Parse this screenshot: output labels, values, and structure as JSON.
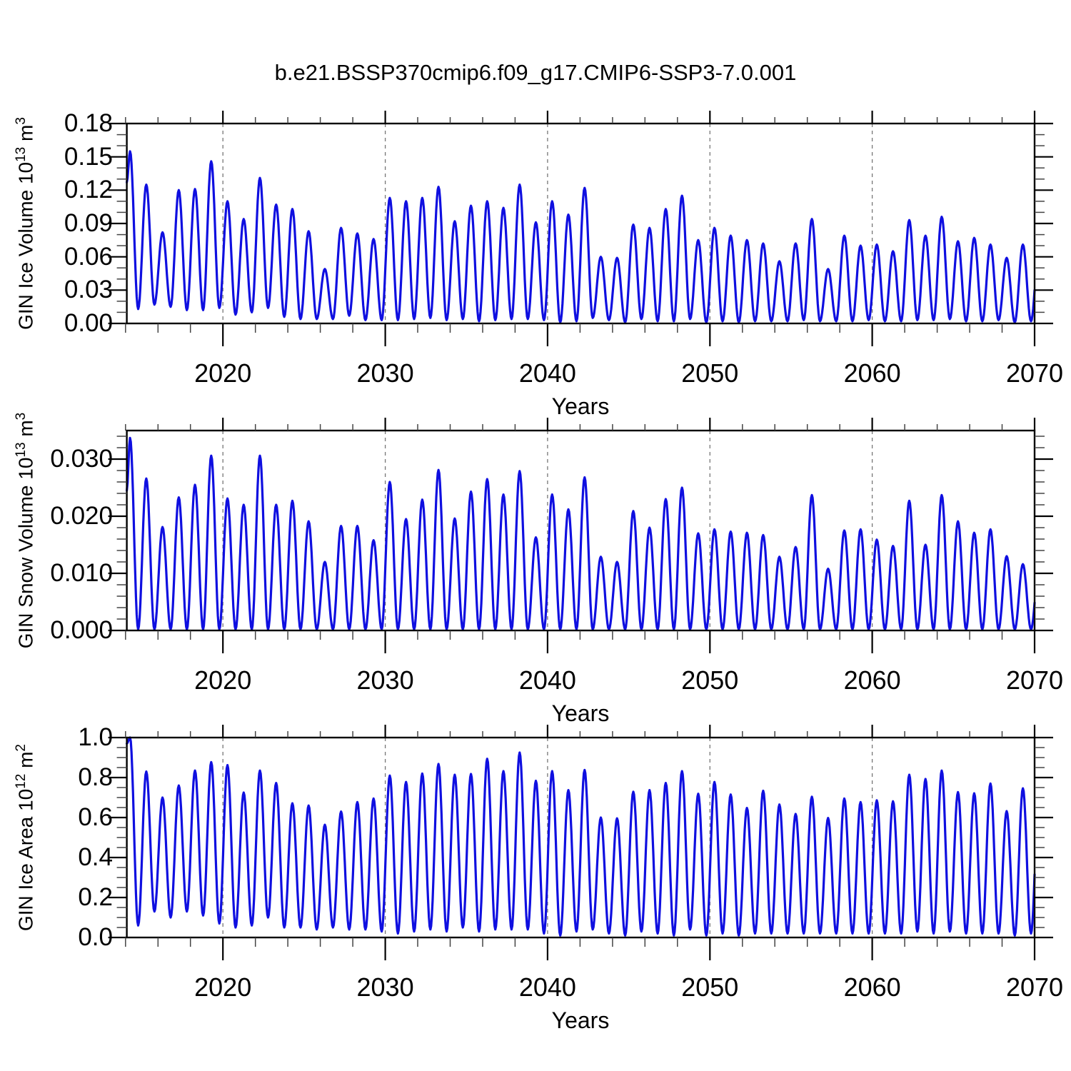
{
  "title": "b.e21.BSSP370cmip6.f09_g17.CMIP6-SSP3-7.0.001",
  "colors": {
    "line": "#0f0fe0",
    "frame": "#000000",
    "major_tick": "#000000",
    "minor_tick": "#444444",
    "dashed_gridline": "#777777",
    "text": "#000000",
    "background": "#ffffff"
  },
  "x_axis": {
    "label": "Years",
    "tick_labels": [
      "2020",
      "2030",
      "2040",
      "2050",
      "2060",
      "2070"
    ],
    "tick_years": [
      2020,
      2030,
      2040,
      2050,
      2060,
      2070
    ],
    "minor_step_years": 2,
    "dashed_years": [
      2020,
      2030,
      2040,
      2050,
      2060
    ]
  },
  "panels": [
    {
      "id": "ice-volume",
      "y_label": {
        "pre": "GIN Ice Volume 10",
        "sup1": "13",
        "mid": " m",
        "sup2": "3"
      },
      "y_tick_labels": [
        "0.00",
        "0.03",
        "0.06",
        "0.09",
        "0.12",
        "0.15",
        "0.18"
      ],
      "y_tick_values": [
        0.0,
        0.03,
        0.06,
        0.09,
        0.12,
        0.15,
        0.18
      ],
      "y_minor_step": 0.01
    },
    {
      "id": "snow-volume",
      "y_label": {
        "pre": "GIN Snow Volume 10",
        "sup1": "13",
        "mid": " m",
        "sup2": "3"
      },
      "y_tick_labels": [
        "0.000",
        "0.010",
        "0.020",
        "0.030"
      ],
      "y_tick_values": [
        0.0,
        0.01,
        0.02,
        0.03
      ],
      "y_minor_step": 0.002
    },
    {
      "id": "ice-area",
      "y_label": {
        "pre": "GIN Ice Area 10",
        "sup1": "12",
        "mid": " m",
        "sup2": "2"
      },
      "y_tick_labels": [
        "0.0",
        "0.2",
        "0.4",
        "0.6",
        "0.8",
        "1.0"
      ],
      "y_tick_values": [
        0.0,
        0.2,
        0.4,
        0.6,
        0.8,
        1.0
      ],
      "y_minor_step": 0.05
    }
  ],
  "chart_data": [
    {
      "type": "line",
      "name": "GIN Ice Volume",
      "ylabel": "GIN Ice Volume 10^13 m^3",
      "xlabel": "Years",
      "ylim": [
        0,
        0.18
      ],
      "x_range": [
        2014,
        2070
      ],
      "legend": "none",
      "grid": "dashed vertical lines at decades",
      "seasonality": {
        "peak_fraction": 0.28,
        "trough_fraction": 0.78,
        "note": "monthly seasonal cycle: annual maximum in spring, minimum near zero in autumn"
      },
      "years": [
        2014,
        2015,
        2016,
        2017,
        2018,
        2019,
        2020,
        2021,
        2022,
        2023,
        2024,
        2025,
        2026,
        2027,
        2028,
        2029,
        2030,
        2031,
        2032,
        2033,
        2034,
        2035,
        2036,
        2037,
        2038,
        2039,
        2040,
        2041,
        2042,
        2043,
        2044,
        2045,
        2046,
        2047,
        2048,
        2049,
        2050,
        2051,
        2052,
        2053,
        2054,
        2055,
        2056,
        2057,
        2058,
        2059,
        2060,
        2061,
        2062,
        2063,
        2064,
        2065,
        2066,
        2067,
        2068,
        2069
      ],
      "annual_max": [
        0.155,
        0.125,
        0.082,
        0.12,
        0.121,
        0.146,
        0.11,
        0.094,
        0.131,
        0.107,
        0.103,
        0.083,
        0.049,
        0.086,
        0.081,
        0.076,
        0.113,
        0.11,
        0.113,
        0.123,
        0.092,
        0.106,
        0.11,
        0.104,
        0.125,
        0.091,
        0.11,
        0.098,
        0.122,
        0.06,
        0.059,
        0.089,
        0.086,
        0.103,
        0.115,
        0.075,
        0.086,
        0.079,
        0.075,
        0.072,
        0.056,
        0.072,
        0.094,
        0.049,
        0.079,
        0.07,
        0.071,
        0.065,
        0.093,
        0.079,
        0.096,
        0.074,
        0.077,
        0.071,
        0.059,
        0.071
      ],
      "annual_min": [
        0.013,
        0.017,
        0.015,
        0.012,
        0.012,
        0.014,
        0.008,
        0.01,
        0.014,
        0.006,
        0.004,
        0.004,
        0.004,
        0.007,
        0.003,
        0.003,
        0.003,
        0.004,
        0.005,
        0.003,
        0.004,
        0.002,
        0.003,
        0.004,
        0.004,
        0.003,
        0.001,
        0.002,
        0.005,
        0.003,
        0.001,
        0.004,
        0.002,
        0.002,
        0.004,
        0.001,
        0.002,
        0.001,
        0.002,
        0.002,
        0.002,
        0.003,
        0.002,
        0.002,
        0.002,
        0.003,
        0.002,
        0.002,
        0.003,
        0.003,
        0.004,
        0.002,
        0.002,
        0.003,
        0.001,
        0.002
      ],
      "start_value": 0.127
    },
    {
      "type": "line",
      "name": "GIN Snow Volume",
      "ylabel": "GIN Snow Volume 10^13 m^3",
      "xlabel": "Years",
      "ylim": [
        0,
        0.03
      ],
      "x_range": [
        2014,
        2070
      ],
      "legend": "none",
      "grid": "dashed vertical lines at decades",
      "seasonality": {
        "peak_fraction": 0.28,
        "trough_fraction": 0.78,
        "note": "snow melts out completely each year; minima ~0"
      },
      "years": [
        2014,
        2015,
        2016,
        2017,
        2018,
        2019,
        2020,
        2021,
        2022,
        2023,
        2024,
        2025,
        2026,
        2027,
        2028,
        2029,
        2030,
        2031,
        2032,
        2033,
        2034,
        2035,
        2036,
        2037,
        2038,
        2039,
        2040,
        2041,
        2042,
        2043,
        2044,
        2045,
        2046,
        2047,
        2048,
        2049,
        2050,
        2051,
        2052,
        2053,
        2054,
        2055,
        2056,
        2057,
        2058,
        2059,
        2060,
        2061,
        2062,
        2063,
        2064,
        2065,
        2066,
        2067,
        2068,
        2069
      ],
      "annual_max": [
        0.0337,
        0.0266,
        0.0181,
        0.0233,
        0.0255,
        0.0306,
        0.0231,
        0.022,
        0.0306,
        0.022,
        0.0227,
        0.0191,
        0.012,
        0.0183,
        0.0183,
        0.0158,
        0.026,
        0.0195,
        0.0229,
        0.0281,
        0.0196,
        0.0243,
        0.0265,
        0.0238,
        0.0279,
        0.0163,
        0.0238,
        0.0212,
        0.0268,
        0.0129,
        0.012,
        0.0209,
        0.018,
        0.023,
        0.025,
        0.017,
        0.0177,
        0.0173,
        0.0171,
        0.0167,
        0.0129,
        0.0146,
        0.0237,
        0.0108,
        0.0175,
        0.0177,
        0.0159,
        0.0148,
        0.0227,
        0.015,
        0.0237,
        0.0191,
        0.0171,
        0.0177,
        0.013,
        0.0116
      ],
      "annual_min": 0.0002,
      "start_value": 0.0245
    },
    {
      "type": "line",
      "name": "GIN Ice Area",
      "ylabel": "GIN Ice Area 10^12 m^2",
      "xlabel": "Years",
      "ylim": [
        0,
        1.0
      ],
      "x_range": [
        2014,
        2070
      ],
      "legend": "none",
      "grid": "dashed vertical lines at decades",
      "seasonality": {
        "peak_fraction": 0.28,
        "trough_fraction": 0.78,
        "note": "annual winter maximum, late-summer minimum"
      },
      "years": [
        2014,
        2015,
        2016,
        2017,
        2018,
        2019,
        2020,
        2021,
        2022,
        2023,
        2024,
        2025,
        2026,
        2027,
        2028,
        2029,
        2030,
        2031,
        2032,
        2033,
        2034,
        2035,
        2036,
        2037,
        2038,
        2039,
        2040,
        2041,
        2042,
        2043,
        2044,
        2045,
        2046,
        2047,
        2048,
        2049,
        2050,
        2051,
        2052,
        2053,
        2054,
        2055,
        2056,
        2057,
        2058,
        2059,
        2060,
        2061,
        2062,
        2063,
        2064,
        2065,
        2066,
        2067,
        2068,
        2069
      ],
      "annual_max": [
        1.0,
        0.83,
        0.7,
        0.76,
        0.835,
        0.877,
        0.862,
        0.725,
        0.835,
        0.773,
        0.671,
        0.66,
        0.564,
        0.63,
        0.677,
        0.695,
        0.81,
        0.778,
        0.82,
        0.868,
        0.814,
        0.818,
        0.894,
        0.832,
        0.925,
        0.784,
        0.832,
        0.737,
        0.838,
        0.6,
        0.596,
        0.729,
        0.737,
        0.773,
        0.832,
        0.719,
        0.778,
        0.715,
        0.648,
        0.734,
        0.665,
        0.618,
        0.704,
        0.598,
        0.695,
        0.677,
        0.686,
        0.681,
        0.814,
        0.793,
        0.835,
        0.727,
        0.721,
        0.77,
        0.632,
        0.746
      ],
      "annual_min": [
        0.06,
        0.13,
        0.1,
        0.13,
        0.11,
        0.07,
        0.05,
        0.06,
        0.1,
        0.05,
        0.05,
        0.04,
        0.05,
        0.04,
        0.04,
        0.03,
        0.02,
        0.03,
        0.04,
        0.03,
        0.05,
        0.03,
        0.04,
        0.04,
        0.04,
        0.02,
        0.01,
        0.03,
        0.04,
        0.02,
        0.01,
        0.03,
        0.02,
        0.01,
        0.04,
        0.01,
        0.02,
        0.01,
        0.02,
        0.02,
        0.02,
        0.02,
        0.02,
        0.02,
        0.02,
        0.02,
        0.02,
        0.02,
        0.03,
        0.02,
        0.03,
        0.02,
        0.02,
        0.02,
        0.01,
        0.02
      ],
      "start_value": 0.97
    }
  ]
}
